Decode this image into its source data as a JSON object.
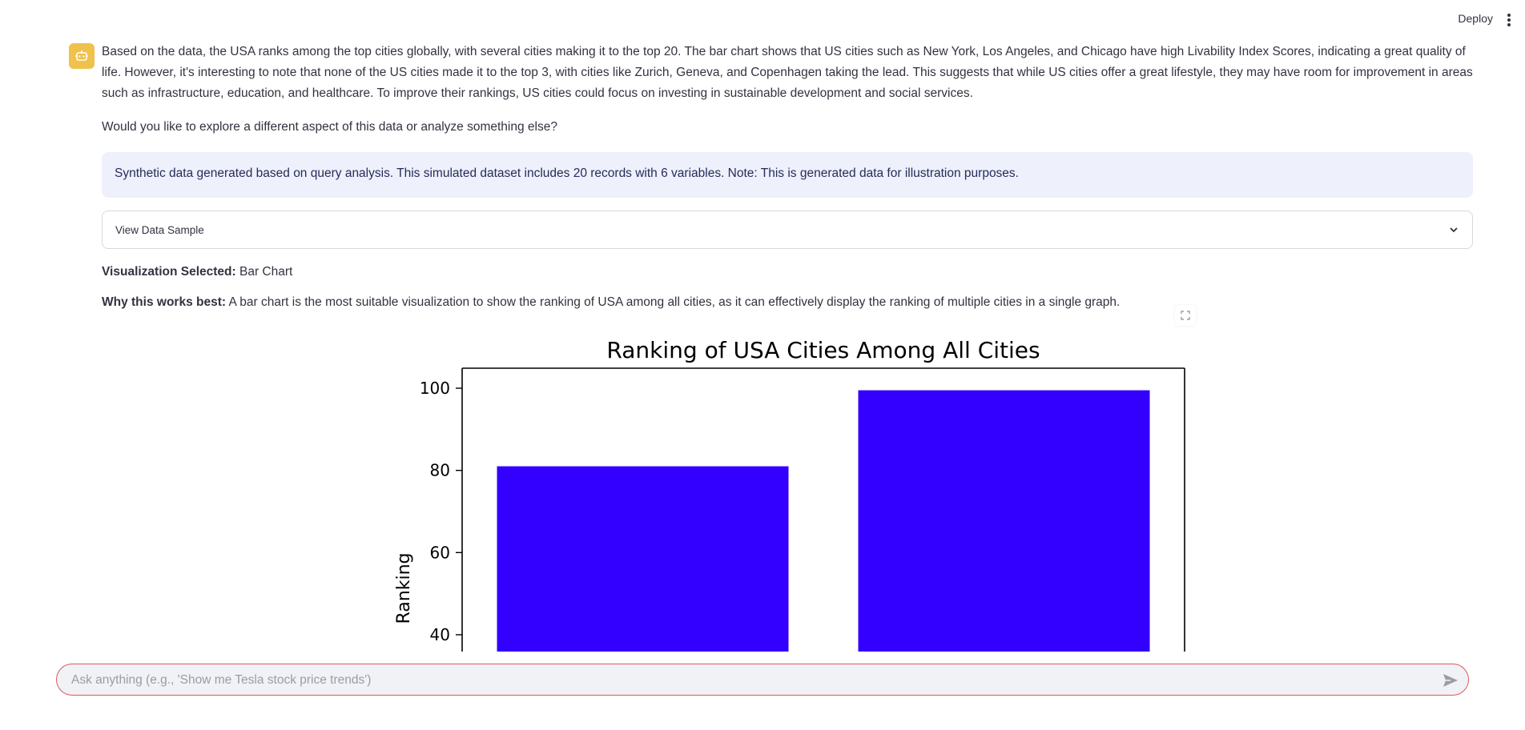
{
  "header": {
    "deploy_label": "Deploy",
    "menu_icon": "more-vertical-icon"
  },
  "message": {
    "avatar_icon": "robot-icon",
    "avatar_color": "#f0c14b",
    "paragraph": "Based on the data, the USA ranks among the top cities globally, with several cities making it to the top 20. The bar chart shows that US cities such as New York, Los Angeles, and Chicago have high Livability Index Scores, indicating a great quality of life. However, it's interesting to note that none of the US cities made it to the top 3, with cities like Zurich, Geneva, and Copenhagen taking the lead. This suggests that while US cities offer a great lifestyle, they may have room for improvement in areas such as infrastructure, education, and healthcare. To improve their rankings, US cities could focus on investing in sustainable development and social services.",
    "question": "Would you like to explore a different aspect of this data or analyze something else?",
    "info": "Synthetic data generated based on query analysis. This simulated dataset includes 20 records with 6 variables. Note: This is generated data for illustration purposes.",
    "expander_label": "View Data Sample",
    "vis_label": "Visualization Selected:",
    "vis_value": "Bar Chart",
    "why_label": "Why this works best:",
    "why_value": "A bar chart is the most suitable visualization to show the ranking of USA among all cities, as it can effectively display the ranking of multiple cities in a single graph."
  },
  "chart_data": {
    "type": "bar",
    "title": "Ranking of USA Cities Among All Cities",
    "xlabel": "",
    "ylabel": "Ranking",
    "categories": [
      "",
      ""
    ],
    "values": [
      81,
      99.5
    ],
    "yticks": [
      40,
      60,
      80,
      100
    ],
    "bar_color": "#3300ff",
    "grid": false
  },
  "chat": {
    "placeholder": "Ask anything (e.g., 'Show me Tesla stock price trends')",
    "value": "",
    "send_icon": "send-icon",
    "border_color": "#e0585a"
  }
}
